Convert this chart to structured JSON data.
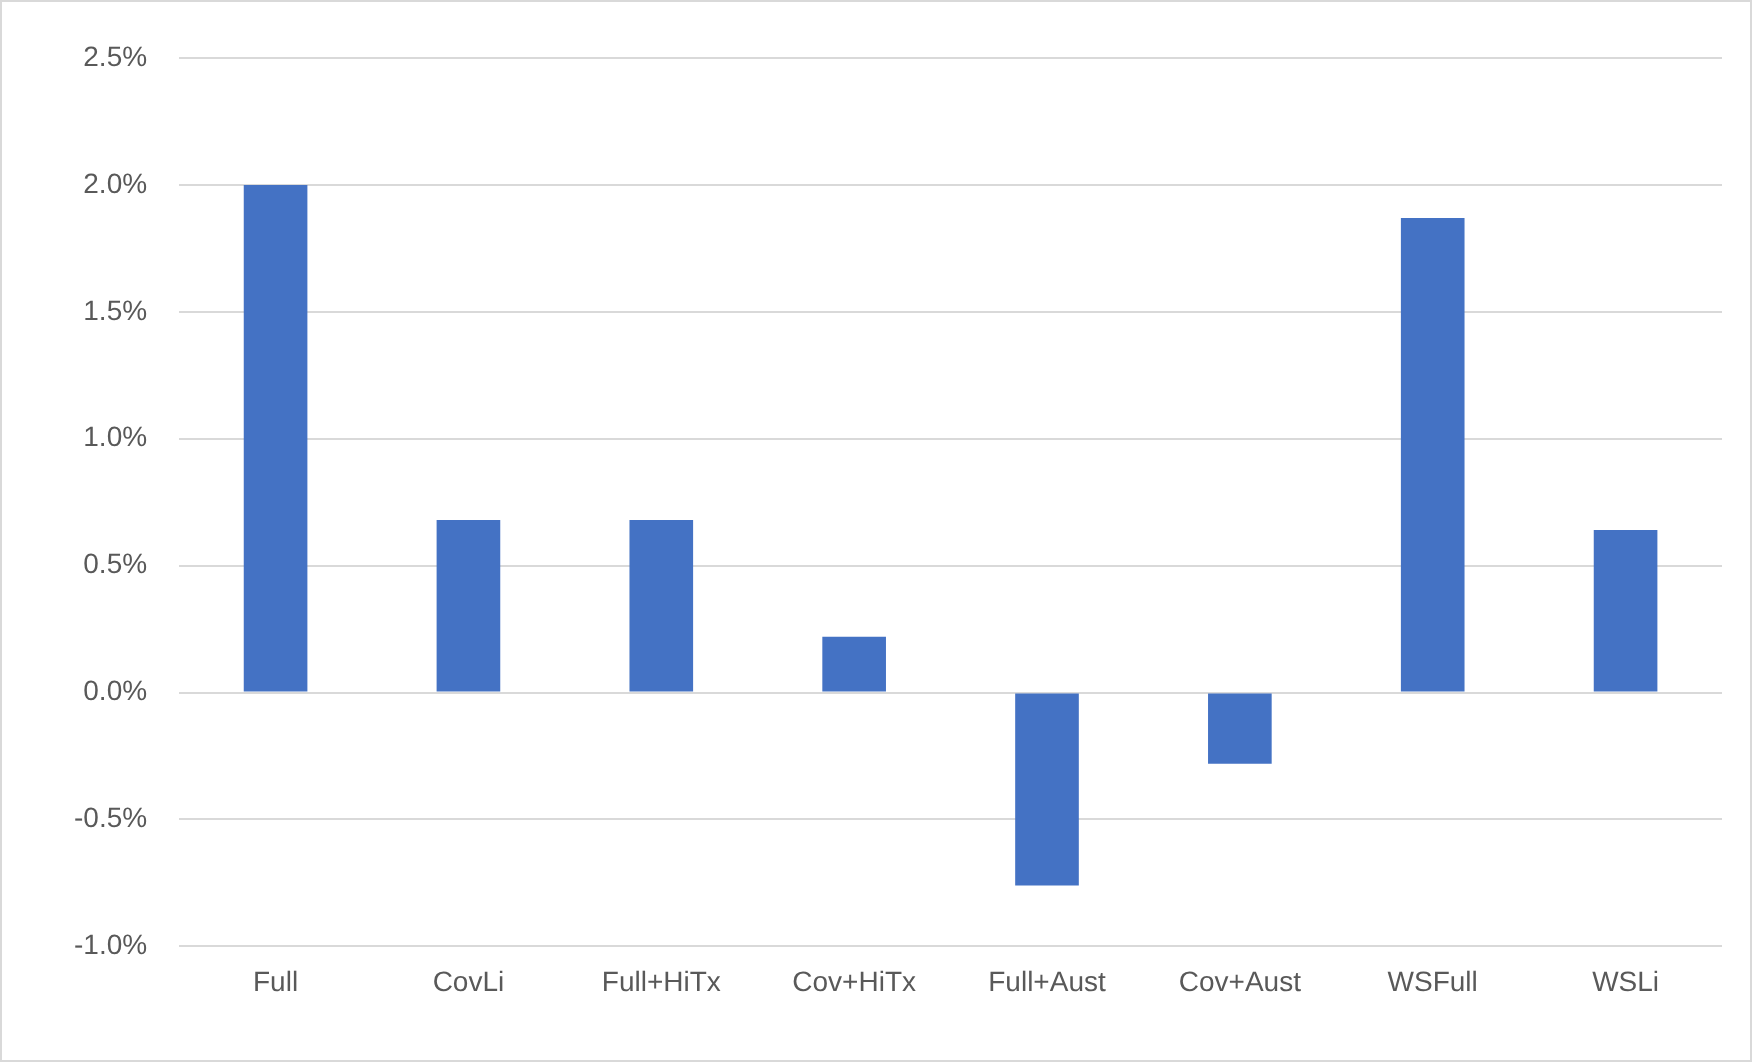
{
  "chart_data": {
    "type": "bar",
    "categories": [
      "Full",
      "CovLi",
      "Full+HiTx",
      "Cov+HiTx",
      "Full+Aust",
      "Cov+Aust",
      "WSFull",
      "WSLi"
    ],
    "values": [
      2.0,
      0.68,
      0.68,
      0.22,
      -0.76,
      -0.28,
      1.87,
      0.64
    ],
    "color": "#4472c4",
    "ylim": [
      -1.0,
      2.5
    ],
    "yticks": [
      {
        "value": -1.0,
        "label": "-1.0%"
      },
      {
        "value": -0.5,
        "label": "-0.5%"
      },
      {
        "value": 0.0,
        "label": "0.0%"
      },
      {
        "value": 0.5,
        "label": "0.5%"
      },
      {
        "value": 1.0,
        "label": "1.0%"
      },
      {
        "value": 1.5,
        "label": "1.5%"
      },
      {
        "value": 2.0,
        "label": "2.0%"
      },
      {
        "value": 2.5,
        "label": "2.5%"
      }
    ],
    "grid": "y",
    "legend": false
  }
}
